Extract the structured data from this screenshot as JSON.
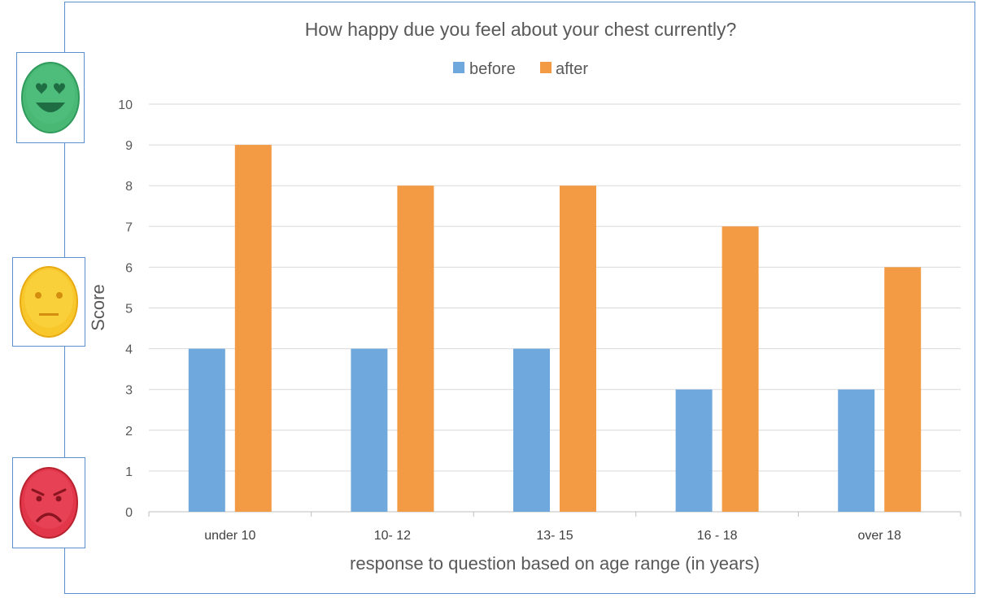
{
  "chart_data": {
    "type": "bar",
    "title": "How happy due you feel about your chest currently?",
    "xlabel": "response to question based on age range (in years)",
    "ylabel": "Score",
    "categories": [
      "under 10",
      "10- 12",
      "13- 15",
      "16 - 18",
      "over 18"
    ],
    "series": [
      {
        "name": "before",
        "values": [
          4,
          4,
          4,
          3,
          3
        ],
        "color": "#6fa8dc"
      },
      {
        "name": "after",
        "values": [
          9,
          8,
          8,
          7,
          6
        ],
        "color": "#f39a44"
      }
    ],
    "ylim": [
      0,
      10
    ],
    "yticks": [
      "0",
      "1",
      "2",
      "3",
      "4",
      "5",
      "6",
      "7",
      "8",
      "9",
      "10"
    ],
    "grid": true,
    "legend_position": "top"
  },
  "side_icons": [
    {
      "name": "happy-face-icon",
      "color": "#3dab6b"
    },
    {
      "name": "neutral-face-icon",
      "color": "#f6c21c"
    },
    {
      "name": "angry-face-icon",
      "color": "#e0303f"
    }
  ]
}
